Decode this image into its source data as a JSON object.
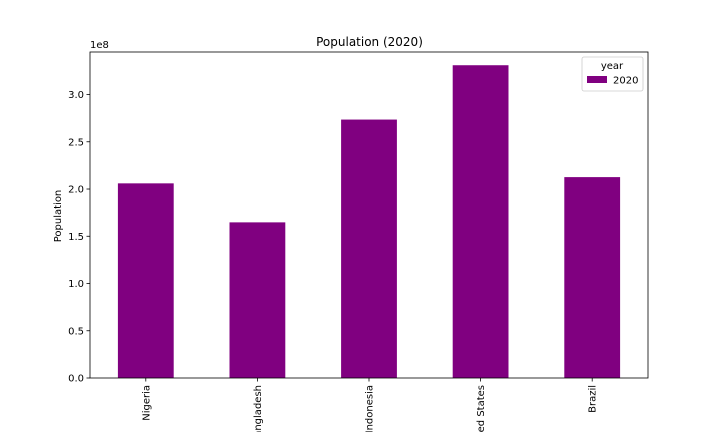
{
  "chart_data": {
    "type": "bar",
    "title": "Population (2020)",
    "xlabel": "",
    "ylabel": "Population",
    "y_offset_label": "1e8",
    "categories": [
      "Nigeria",
      "Bangladesh",
      "Indonesia",
      "United States",
      "Brazil"
    ],
    "series": [
      {
        "name": "2020",
        "values": [
          206000000,
          164700000,
          273500000,
          331000000,
          212600000
        ]
      }
    ],
    "ylim": [
      0,
      345000000
    ],
    "yticks": [
      0,
      50000000,
      100000000,
      150000000,
      200000000,
      250000000,
      300000000
    ],
    "ytick_labels": [
      "0.0",
      "0.5",
      "1.0",
      "1.5",
      "2.0",
      "2.5",
      "3.0"
    ],
    "legend": {
      "title": "year",
      "entries": [
        "2020"
      ],
      "placement": "top-right"
    },
    "bar_color": "#800080",
    "grid": false
  }
}
